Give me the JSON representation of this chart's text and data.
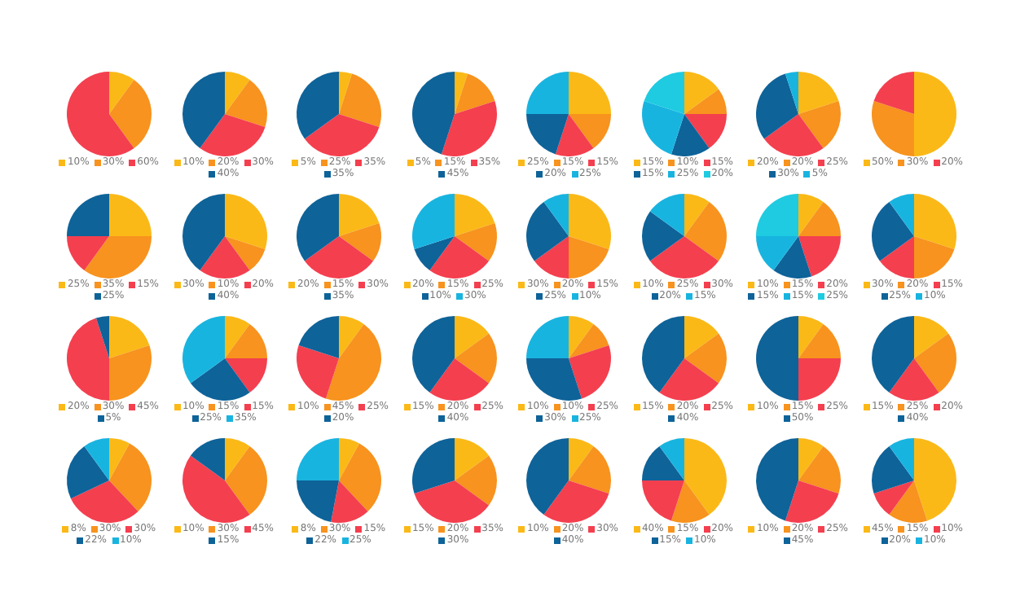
{
  "chart_data": [
    {
      "type": "pie",
      "categories": [
        "10%",
        "30%",
        "60%"
      ],
      "values": [
        10,
        30,
        60
      ],
      "colors": [
        "#fbb917",
        "#f7931e",
        "#f43f4f"
      ],
      "legend": "bottom"
    },
    {
      "type": "pie",
      "categories": [
        "10%",
        "20%",
        "30%",
        "40%"
      ],
      "values": [
        10,
        20,
        30,
        40
      ],
      "colors": [
        "#fbb917",
        "#f7931e",
        "#f43f4f",
        "#0e6399"
      ],
      "legend": "bottom"
    },
    {
      "type": "pie",
      "categories": [
        "5%",
        "25%",
        "35%",
        "35%"
      ],
      "values": [
        5,
        25,
        35,
        35
      ],
      "colors": [
        "#fbb917",
        "#f7931e",
        "#f43f4f",
        "#0e6399"
      ],
      "legend": "bottom"
    },
    {
      "type": "pie",
      "categories": [
        "5%",
        "15%",
        "35%",
        "45%"
      ],
      "values": [
        5,
        15,
        35,
        45
      ],
      "colors": [
        "#fbb917",
        "#f7931e",
        "#f43f4f",
        "#0e6399"
      ],
      "legend": "bottom"
    },
    {
      "type": "pie",
      "categories": [
        "25%",
        "15%",
        "15%",
        "20%",
        "25%"
      ],
      "values": [
        25,
        15,
        15,
        20,
        25
      ],
      "colors": [
        "#fbb917",
        "#f7931e",
        "#f43f4f",
        "#0e6399",
        "#18b4e0"
      ],
      "legend": "bottom"
    },
    {
      "type": "pie",
      "categories": [
        "15%",
        "10%",
        "15%",
        "15%",
        "25%",
        "20%"
      ],
      "values": [
        15,
        10,
        15,
        15,
        25,
        20
      ],
      "colors": [
        "#fbb917",
        "#f7931e",
        "#f43f4f",
        "#0e6399",
        "#18b4e0",
        "#1ecbe1"
      ],
      "legend": "bottom"
    },
    {
      "type": "pie",
      "categories": [
        "20%",
        "20%",
        "25%",
        "30%",
        "5%"
      ],
      "values": [
        20,
        20,
        25,
        30,
        5
      ],
      "colors": [
        "#fbb917",
        "#f7931e",
        "#f43f4f",
        "#0e6399",
        "#18b4e0"
      ],
      "legend": "bottom"
    },
    {
      "type": "pie",
      "categories": [
        "50%",
        "30%",
        "20%"
      ],
      "values": [
        50,
        30,
        20
      ],
      "colors": [
        "#fbb917",
        "#f7931e",
        "#f43f4f"
      ],
      "legend": "bottom"
    },
    {
      "type": "pie",
      "categories": [
        "25%",
        "35%",
        "15%",
        "25%"
      ],
      "values": [
        25,
        35,
        15,
        25
      ],
      "colors": [
        "#fbb917",
        "#f7931e",
        "#f43f4f",
        "#0e6399"
      ],
      "legend": "bottom"
    },
    {
      "type": "pie",
      "categories": [
        "30%",
        "10%",
        "20%",
        "40%"
      ],
      "values": [
        30,
        10,
        20,
        40
      ],
      "colors": [
        "#fbb917",
        "#f7931e",
        "#f43f4f",
        "#0e6399"
      ],
      "legend": "bottom"
    },
    {
      "type": "pie",
      "categories": [
        "20%",
        "15%",
        "30%",
        "35%"
      ],
      "values": [
        20,
        15,
        30,
        35
      ],
      "colors": [
        "#fbb917",
        "#f7931e",
        "#f43f4f",
        "#0e6399"
      ],
      "legend": "bottom"
    },
    {
      "type": "pie",
      "categories": [
        "20%",
        "15%",
        "25%",
        "10%",
        "30%"
      ],
      "values": [
        20,
        15,
        25,
        10,
        30
      ],
      "colors": [
        "#fbb917",
        "#f7931e",
        "#f43f4f",
        "#0e6399",
        "#18b4e0"
      ],
      "legend": "bottom"
    },
    {
      "type": "pie",
      "categories": [
        "30%",
        "20%",
        "15%",
        "25%",
        "10%"
      ],
      "values": [
        30,
        20,
        15,
        25,
        10
      ],
      "colors": [
        "#fbb917",
        "#f7931e",
        "#f43f4f",
        "#0e6399",
        "#18b4e0"
      ],
      "legend": "bottom"
    },
    {
      "type": "pie",
      "categories": [
        "10%",
        "25%",
        "30%",
        "20%",
        "15%"
      ],
      "values": [
        10,
        25,
        30,
        20,
        15
      ],
      "colors": [
        "#fbb917",
        "#f7931e",
        "#f43f4f",
        "#0e6399",
        "#18b4e0"
      ],
      "legend": "bottom"
    },
    {
      "type": "pie",
      "categories": [
        "10%",
        "15%",
        "20%",
        "15%",
        "15%",
        "25%"
      ],
      "values": [
        10,
        15,
        20,
        15,
        15,
        25
      ],
      "colors": [
        "#fbb917",
        "#f7931e",
        "#f43f4f",
        "#0e6399",
        "#18b4e0",
        "#1ecbe1"
      ],
      "legend": "bottom"
    },
    {
      "type": "pie",
      "categories": [
        "30%",
        "20%",
        "15%",
        "25%",
        "10%"
      ],
      "values": [
        30,
        20,
        15,
        25,
        10
      ],
      "colors": [
        "#fbb917",
        "#f7931e",
        "#f43f4f",
        "#0e6399",
        "#18b4e0"
      ],
      "legend": "bottom"
    },
    {
      "type": "pie",
      "categories": [
        "20%",
        "30%",
        "45%",
        "5%"
      ],
      "values": [
        20,
        30,
        45,
        5
      ],
      "colors": [
        "#fbb917",
        "#f7931e",
        "#f43f4f",
        "#0e6399"
      ],
      "legend": "bottom"
    },
    {
      "type": "pie",
      "categories": [
        "10%",
        "15%",
        "15%",
        "25%",
        "35%"
      ],
      "values": [
        10,
        15,
        15,
        25,
        35
      ],
      "colors": [
        "#fbb917",
        "#f7931e",
        "#f43f4f",
        "#0e6399",
        "#18b4e0"
      ],
      "legend": "bottom"
    },
    {
      "type": "pie",
      "categories": [
        "10%",
        "45%",
        "25%",
        "20%"
      ],
      "values": [
        10,
        45,
        25,
        20
      ],
      "colors": [
        "#fbb917",
        "#f7931e",
        "#f43f4f",
        "#0e6399"
      ],
      "legend": "bottom"
    },
    {
      "type": "pie",
      "categories": [
        "15%",
        "20%",
        "25%",
        "40%"
      ],
      "values": [
        15,
        20,
        25,
        40
      ],
      "colors": [
        "#fbb917",
        "#f7931e",
        "#f43f4f",
        "#0e6399"
      ],
      "legend": "bottom"
    },
    {
      "type": "pie",
      "categories": [
        "10%",
        "10%",
        "25%",
        "30%",
        "25%"
      ],
      "values": [
        10,
        10,
        25,
        30,
        25
      ],
      "colors": [
        "#fbb917",
        "#f7931e",
        "#f43f4f",
        "#0e6399",
        "#18b4e0"
      ],
      "legend": "bottom"
    },
    {
      "type": "pie",
      "categories": [
        "15%",
        "20%",
        "25%",
        "40%"
      ],
      "values": [
        15,
        20,
        25,
        40
      ],
      "colors": [
        "#fbb917",
        "#f7931e",
        "#f43f4f",
        "#0e6399"
      ],
      "legend": "bottom"
    },
    {
      "type": "pie",
      "categories": [
        "10%",
        "15%",
        "25%",
        "50%"
      ],
      "values": [
        10,
        15,
        25,
        50
      ],
      "colors": [
        "#fbb917",
        "#f7931e",
        "#f43f4f",
        "#0e6399"
      ],
      "legend": "bottom"
    },
    {
      "type": "pie",
      "categories": [
        "15%",
        "25%",
        "20%",
        "40%"
      ],
      "values": [
        15,
        25,
        20,
        40
      ],
      "colors": [
        "#fbb917",
        "#f7931e",
        "#f43f4f",
        "#0e6399"
      ],
      "legend": "bottom"
    },
    {
      "type": "pie",
      "categories": [
        "8%",
        "30%",
        "30%",
        "22%",
        "10%"
      ],
      "values": [
        8,
        30,
        30,
        22,
        10
      ],
      "colors": [
        "#fbb917",
        "#f7931e",
        "#f43f4f",
        "#0e6399",
        "#18b4e0"
      ],
      "legend": "bottom"
    },
    {
      "type": "pie",
      "categories": [
        "10%",
        "30%",
        "45%",
        "15%"
      ],
      "values": [
        10,
        30,
        45,
        15
      ],
      "colors": [
        "#fbb917",
        "#f7931e",
        "#f43f4f",
        "#0e6399"
      ],
      "legend": "bottom"
    },
    {
      "type": "pie",
      "categories": [
        "8%",
        "30%",
        "15%",
        "22%",
        "25%"
      ],
      "values": [
        8,
        30,
        15,
        22,
        25
      ],
      "colors": [
        "#fbb917",
        "#f7931e",
        "#f43f4f",
        "#0e6399",
        "#18b4e0"
      ],
      "legend": "bottom"
    },
    {
      "type": "pie",
      "categories": [
        "15%",
        "20%",
        "35%",
        "30%"
      ],
      "values": [
        15,
        20,
        35,
        30
      ],
      "colors": [
        "#fbb917",
        "#f7931e",
        "#f43f4f",
        "#0e6399"
      ],
      "legend": "bottom"
    },
    {
      "type": "pie",
      "categories": [
        "10%",
        "20%",
        "30%",
        "40%"
      ],
      "values": [
        10,
        20,
        30,
        40
      ],
      "colors": [
        "#fbb917",
        "#f7931e",
        "#f43f4f",
        "#0e6399"
      ],
      "legend": "bottom"
    },
    {
      "type": "pie",
      "categories": [
        "40%",
        "15%",
        "20%",
        "15%",
        "10%"
      ],
      "values": [
        40,
        15,
        20,
        15,
        10
      ],
      "colors": [
        "#fbb917",
        "#f7931e",
        "#f43f4f",
        "#0e6399",
        "#18b4e0"
      ],
      "legend": "bottom"
    },
    {
      "type": "pie",
      "categories": [
        "10%",
        "20%",
        "25%",
        "45%"
      ],
      "values": [
        10,
        20,
        25,
        45
      ],
      "colors": [
        "#fbb917",
        "#f7931e",
        "#f43f4f",
        "#0e6399"
      ],
      "legend": "bottom"
    },
    {
      "type": "pie",
      "categories": [
        "45%",
        "15%",
        "10%",
        "20%",
        "10%"
      ],
      "values": [
        45,
        15,
        10,
        20,
        10
      ],
      "colors": [
        "#fbb917",
        "#f7931e",
        "#f43f4f",
        "#0e6399",
        "#18b4e0"
      ],
      "legend": "bottom"
    }
  ]
}
